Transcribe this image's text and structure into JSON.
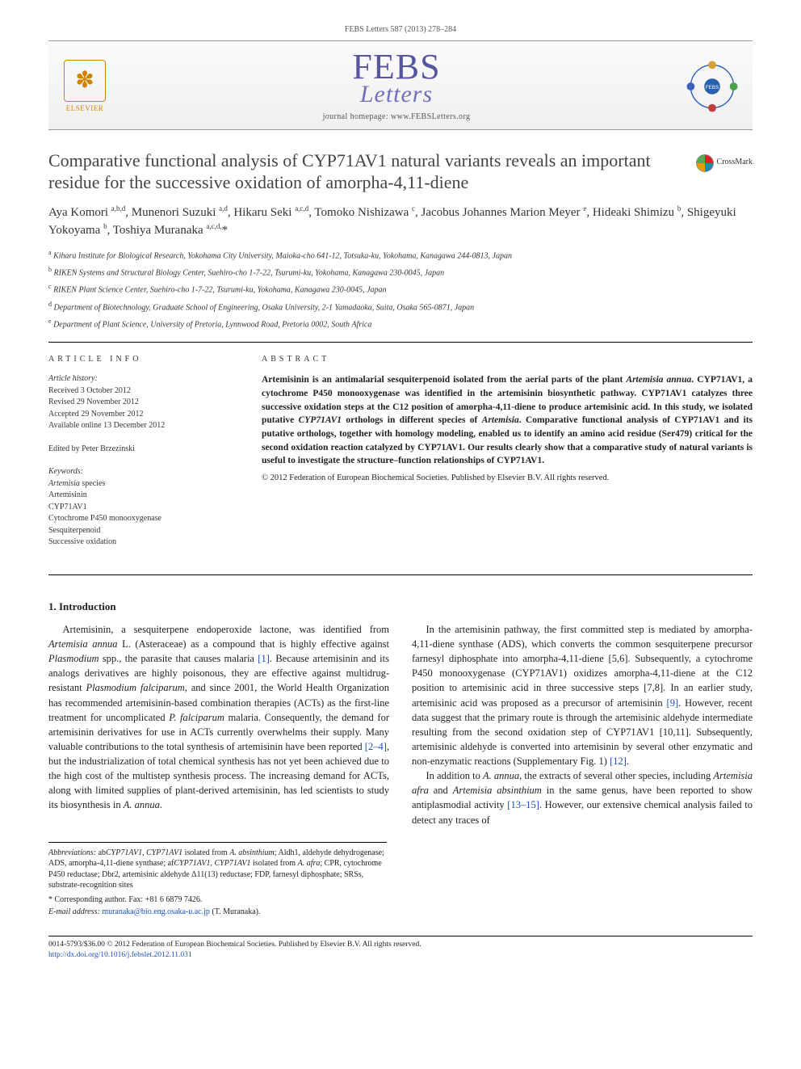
{
  "journal_ref": "FEBS Letters 587 (2013) 278–284",
  "publisher": "ELSEVIER",
  "journal_logo_main": "FEBS",
  "journal_logo_sub": "Letters",
  "homepage_label": "journal homepage: www.FEBSLetters.org",
  "crossmark_label": "CrossMark",
  "title": "Comparative functional analysis of CYP71AV1 natural variants reveals an important residue for the successive oxidation of amorpha-4,11-diene",
  "authors_html": "Aya Komori <sup>a,b,d</sup>, Munenori Suzuki <sup>a,d</sup>, Hikaru Seki <sup>a,c,d</sup>, Tomoko Nishizawa <sup>c</sup>, Jacobus Johannes Marion Meyer <sup>e</sup>, Hideaki Shimizu <sup>b</sup>, Shigeyuki Yokoyama <sup>b</sup>, Toshiya Muranaka <sup>a,c,d,</sup>*",
  "affiliations": [
    {
      "sup": "a",
      "text": "Kihara Institute for Biological Research, Yokohama City University, Maioka-cho 641-12, Totsuka-ku, Yokohama, Kanagawa 244-0813, Japan"
    },
    {
      "sup": "b",
      "text": "RIKEN Systems and Structural Biology Center, Suehiro-cho 1-7-22, Tsurumi-ku, Yokohama, Kanagawa 230-0045, Japan"
    },
    {
      "sup": "c",
      "text": "RIKEN Plant Science Center, Suehiro-cho 1-7-22, Tsurumi-ku, Yokohama, Kanagawa 230-0045, Japan"
    },
    {
      "sup": "d",
      "text": "Department of Biotechnology, Graduate School of Engineering, Osaka University, 2-1 Yamadaoka, Suita, Osaka 565-0871, Japan"
    },
    {
      "sup": "e",
      "text": "Department of Plant Science, University of Pretoria, Lynnwood Road, Pretoria 0002, South Africa"
    }
  ],
  "article_info_head": "ARTICLE INFO",
  "abstract_head": "ABSTRACT",
  "history_label": "Article history:",
  "history_lines": [
    "Received 3 October 2012",
    "Revised 29 November 2012",
    "Accepted 29 November 2012",
    "Available online 13 December 2012"
  ],
  "edited_by": "Edited by Peter Brzezinski",
  "keywords_label": "Keywords:",
  "keywords": [
    "Artemisia species",
    "Artemisinin",
    "CYP71AV1",
    "Cytochrome P450 monooxygenase",
    "Sesquiterpenoid",
    "Successive oxidation"
  ],
  "abstract": "Artemisinin is an antimalarial sesquiterpenoid isolated from the aerial parts of the plant Artemisia annua. CYP71AV1, a cytochrome P450 monooxygenase was identified in the artemisinin biosynthetic pathway. CYP71AV1 catalyzes three successive oxidation steps at the C12 position of amorpha-4,11-diene to produce artemisinic acid. In this study, we isolated putative CYP71AV1 orthologs in different species of Artemisia. Comparative functional analysis of CYP71AV1 and its putative orthologs, together with homology modeling, enabled us to identify an amino acid residue (Ser479) critical for the second oxidation reaction catalyzed by CYP71AV1. Our results clearly show that a comparative study of natural variants is useful to investigate the structure–function relationships of CYP71AV1.",
  "abstract_copyright": "© 2012 Federation of European Biochemical Societies. Published by Elsevier B.V. All rights reserved.",
  "section_head": "1. Introduction",
  "intro_paragraphs": [
    "Artemisinin, a sesquiterpene endoperoxide lactone, was identified from Artemisia annua L. (Asteraceae) as a compound that is highly effective against Plasmodium spp., the parasite that causes malaria [1]. Because artemisinin and its analogs derivatives are highly poisonous, they are effective against multidrug-resistant Plasmodium falciparum, and since 2001, the World Health Organization has recommended artemisinin-based combination therapies (ACTs) as the first-line treatment for uncomplicated P. falciparum malaria. Consequently, the demand for artemisinin derivatives for use in ACTs currently overwhelms their supply. Many valuable contributions to the total synthesis of artemisinin have been reported [2–4], but the industrialization of total chemical synthesis has not yet been achieved due to the high cost of the multistep synthesis process. The increasing demand for ACTs, along with limited supplies of plant-derived artemisinin, has led scientists to study its biosynthesis in A. annua.",
    "In the artemisinin pathway, the first committed step is mediated by amorpha-4,11-diene synthase (ADS), which converts the common sesquiterpene precursor farnesyl diphosphate into amorpha-4,11-diene [5,6]. Subsequently, a cytochrome P450 monooxygenase (CYP71AV1) oxidizes amorpha-4,11-diene at the C12 position to artemisinic acid in three successive steps [7,8]. In an earlier study, artemisinic acid was proposed as a precursor of artemisinin [9]. However, recent data suggest that the primary route is through the artemisinic aldehyde intermediate resulting from the second oxidation step of CYP71AV1 [10,11]. Subsequently, artemisinic aldehyde is converted into artemisinin by several other enzymatic and non-enzymatic reactions (Supplementary Fig. 1) [12].",
    "In addition to A. annua, the extracts of several other species, including Artemisia afra and Artemisia absinthium in the same genus, have been reported to show antiplasmodial activity [13–15]. However, our extensive chemical analysis failed to detect any traces of"
  ],
  "abbrev_label": "Abbreviations:",
  "abbreviations": "abCYP71AV1, CYP71AV1 isolated from A. absinthium; Aldh1, aldehyde dehydrogenase; ADS, amorpha-4,11-diene synthase; afCYP71AV1, CYP71AV1 isolated from A. afra; CPR, cytochrome P450 reductase; Dbr2, artemisinic aldehyde Δ11(13) reductase; FDP, farnesyl diphosphate; SRSs, substrate-recognition sites",
  "corr_label": "* Corresponding author. Fax: +81 6 6879 7426.",
  "email_label": "E-mail address:",
  "email": "muranaka@bio.eng.osaka-u.ac.jp",
  "email_suffix": "(T. Muranaka).",
  "footer_line1": "0014-5793/$36.00 © 2012 Federation of European Biochemical Societies. Published by Elsevier B.V. All rights reserved.",
  "footer_doi": "http://dx.doi.org/10.1016/j.febslet.2012.11.031",
  "colors": {
    "ref_link": "#1a4fb5",
    "elsevier": "#cc8400",
    "febs": "#3a3a8f",
    "text": "#222222",
    "rule": "#000000"
  },
  "typography": {
    "body_pt": 12.5,
    "title_pt": 22,
    "authors_pt": 15,
    "abstract_pt": 11.5,
    "small_pt": 10
  }
}
